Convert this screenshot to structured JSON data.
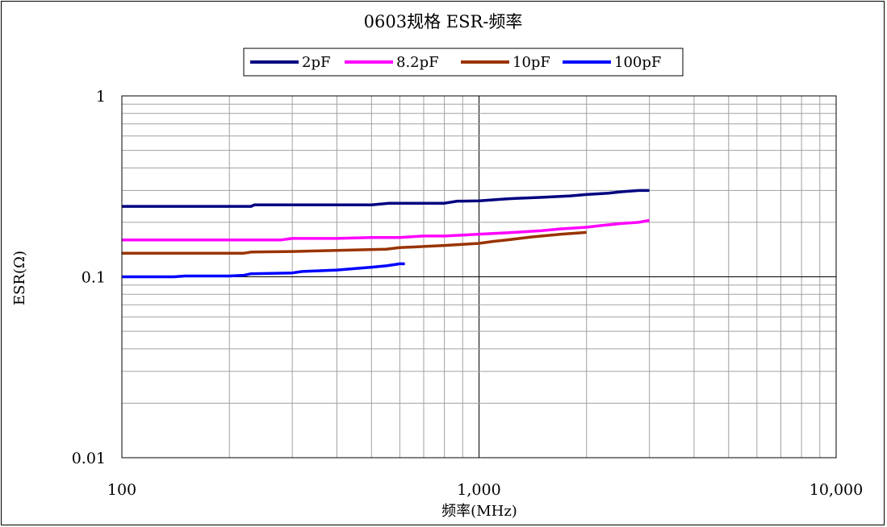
{
  "chart_data": {
    "type": "line",
    "title": "0603规格 ESR-频率",
    "xlabel": "频率(MHz)",
    "ylabel": "ESR(Ω)",
    "x_scale": "log",
    "y_scale": "log",
    "xlim": [
      100,
      10000
    ],
    "ylim": [
      0.01,
      1
    ],
    "x_ticks": [
      100,
      1000,
      10000
    ],
    "x_tick_labels": [
      "100",
      "1,000",
      "10,000"
    ],
    "y_ticks": [
      1,
      0.1,
      0.01
    ],
    "y_tick_labels": [
      "1",
      "0.1",
      "0.01"
    ],
    "grid": true,
    "legend": "top-center",
    "series": [
      {
        "name": "2pF",
        "color": "#000080",
        "x": [
          100,
          230,
          235,
          300,
          400,
          500,
          560,
          600,
          800,
          870,
          900,
          1000,
          1200,
          1500,
          1800,
          2000,
          2300,
          2500,
          2800,
          3000
        ],
        "y": [
          0.245,
          0.245,
          0.25,
          0.25,
          0.25,
          0.25,
          0.255,
          0.255,
          0.255,
          0.262,
          0.262,
          0.263,
          0.27,
          0.275,
          0.28,
          0.285,
          0.29,
          0.295,
          0.3,
          0.3
        ]
      },
      {
        "name": "8.2pF",
        "color": "#FF00FF",
        "x": [
          100,
          280,
          300,
          400,
          500,
          600,
          700,
          800,
          900,
          1000,
          1200,
          1500,
          1700,
          2000,
          2200,
          2500,
          2800,
          3000
        ],
        "y": [
          0.16,
          0.16,
          0.163,
          0.163,
          0.165,
          0.165,
          0.168,
          0.168,
          0.17,
          0.172,
          0.175,
          0.18,
          0.184,
          0.188,
          0.192,
          0.197,
          0.2,
          0.205
        ]
      },
      {
        "name": "10pF",
        "color": "#993300",
        "x": [
          100,
          220,
          230,
          300,
          400,
          550,
          600,
          700,
          800,
          900,
          1000,
          1100,
          1200,
          1300,
          1400,
          1500,
          1700,
          2000
        ],
        "y": [
          0.135,
          0.135,
          0.137,
          0.138,
          0.14,
          0.142,
          0.145,
          0.147,
          0.149,
          0.151,
          0.153,
          0.157,
          0.16,
          0.163,
          0.166,
          0.168,
          0.172,
          0.176
        ]
      },
      {
        "name": "100pF",
        "color": "#0000FF",
        "x": [
          100,
          140,
          150,
          200,
          220,
          230,
          300,
          320,
          400,
          450,
          500,
          550,
          600,
          620
        ],
        "y": [
          0.1,
          0.1,
          0.101,
          0.101,
          0.102,
          0.104,
          0.105,
          0.107,
          0.109,
          0.111,
          0.113,
          0.115,
          0.118,
          0.118
        ]
      }
    ]
  }
}
